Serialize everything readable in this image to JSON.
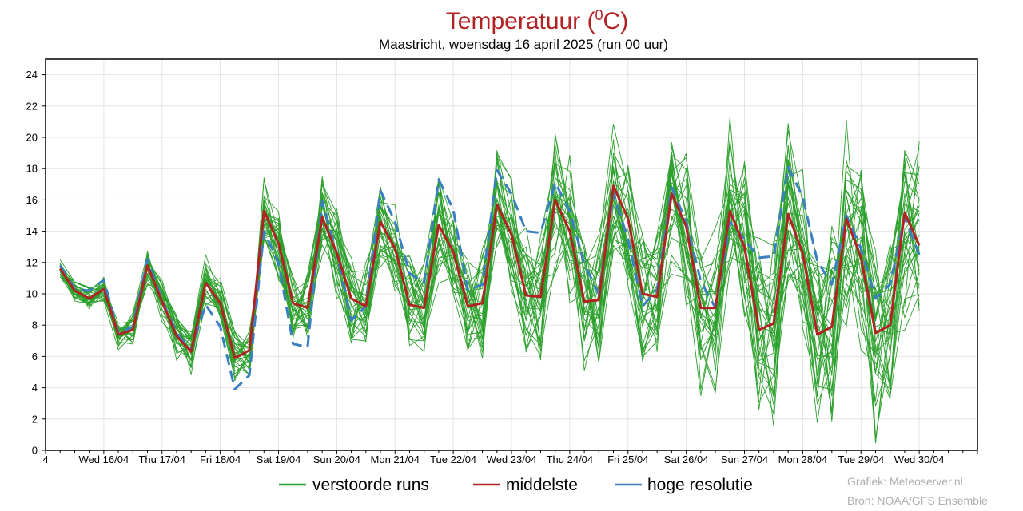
{
  "chart_data": {
    "type": "line",
    "title_main": "Temperatuur (",
    "title_sup": "0",
    "title_end": "C)",
    "subtitle": "Maastricht, woensdag 16 april 2025 (run 00 uur)",
    "ylim": [
      0,
      25
    ],
    "yticks": [
      0,
      2,
      4,
      6,
      8,
      10,
      12,
      14,
      16,
      18,
      20,
      22,
      24
    ],
    "x_unit": "steps of 6 hours starting 16/04 00:00",
    "xlim": [
      0,
      64
    ],
    "x_leading_label": "4",
    "day_labels": [
      "Wed 16/04",
      "Thu 17/04",
      "Fri 18/04",
      "Sat 19/04",
      "Sun 20/04",
      "Mon 21/04",
      "Tue 22/04",
      "Wed 23/04",
      "Thu 24/04",
      "Fri 25/04",
      "Sat 26/04",
      "Sun 27/04",
      "Mon 28/04",
      "Tue 29/04",
      "Wed 30/04"
    ],
    "grid": true,
    "legend_position": "bottom",
    "colors": {
      "ensemble": "#2ca02c",
      "mean": "#b22222",
      "high_res": "#3a7fc1"
    },
    "series": [
      {
        "name": "verstoorde runs",
        "style": "thin",
        "count": 30
      },
      {
        "name": "middelste",
        "style": "thick-solid",
        "start": 1,
        "values": [
          11.6,
          10.2,
          9.7,
          10.3,
          7.4,
          7.7,
          11.8,
          9.5,
          7.3,
          6.3,
          10.7,
          9.4,
          5.9,
          6.4,
          15.3,
          13.2,
          9.4,
          9.1,
          14.9,
          12.6,
          9.7,
          9.2,
          14.6,
          12.9,
          9.3,
          9.1,
          14.4,
          12.7,
          9.2,
          9.4,
          15.7,
          13.8,
          9.9,
          9.8,
          16.0,
          14.0,
          9.5,
          9.6,
          16.9,
          14.8,
          10.0,
          9.8,
          16.4,
          14.3,
          9.1,
          9.1,
          15.3,
          13.0,
          7.7,
          8.1,
          15.1,
          12.6,
          7.4,
          7.9,
          14.8,
          12.3,
          7.5,
          8.0,
          15.2,
          13.1
        ]
      },
      {
        "name": "hoge resolutie",
        "style": "thick-dashed",
        "start": 1,
        "values": [
          11.8,
          10.3,
          10.2,
          10.9,
          7.5,
          7.9,
          12.2,
          9.6,
          7.5,
          6.4,
          9.3,
          7.9,
          3.9,
          4.8,
          14.0,
          12.0,
          6.8,
          6.6,
          15.9,
          12.6,
          8.3,
          9.2,
          16.6,
          14.6,
          11.3,
          10.7,
          17.3,
          15.4,
          10.2,
          10.6,
          17.9,
          16.4,
          14.0,
          13.9,
          17.1,
          15.3,
          11.9,
          10.0,
          16.4,
          13.5,
          9.2,
          10.3,
          16.8,
          14.6,
          10.8,
          9.1,
          14.6,
          13.5,
          12.3,
          12.4,
          18.1,
          16.2,
          12.1,
          10.6,
          15.0,
          12.9,
          9.7,
          10.6,
          14.9,
          12.5
        ]
      }
    ]
  },
  "legend": {
    "ensemble_label": "verstoorde runs",
    "mean_label": "middelste",
    "high_res_label": "hoge resolutie"
  },
  "credits": {
    "line1": "Grafiek: Meteoserver.nl",
    "line2": "Bron: NOAA/GFS Ensemble"
  }
}
